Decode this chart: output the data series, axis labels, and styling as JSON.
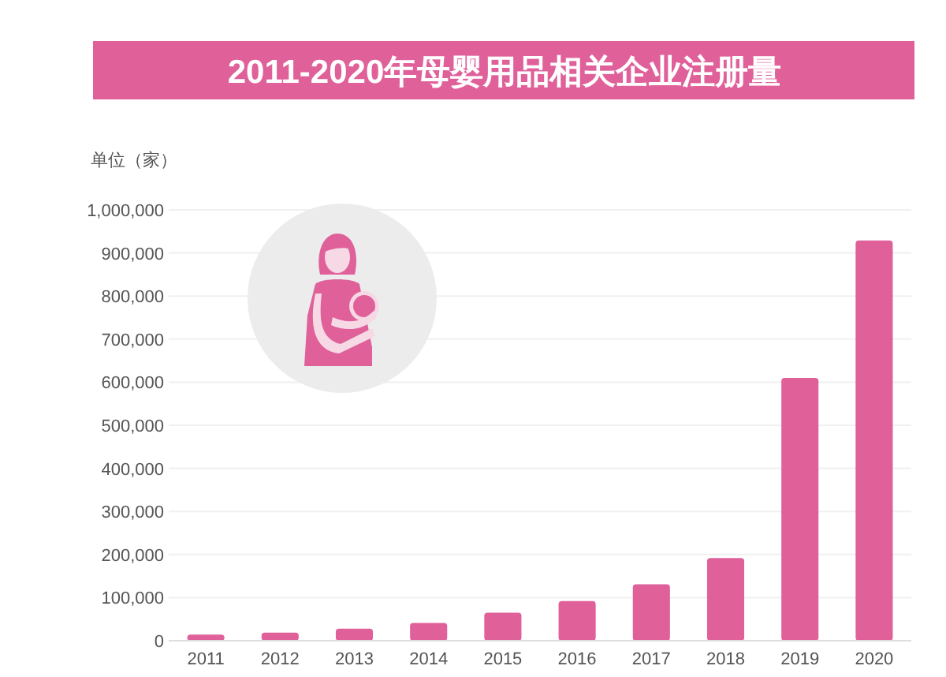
{
  "chart_data": {
    "type": "bar",
    "title": "2011-2020年母婴用品相关企业注册量",
    "ylabel": "单位（家）",
    "categories": [
      "2011",
      "2012",
      "2013",
      "2014",
      "2015",
      "2016",
      "2017",
      "2018",
      "2019",
      "2020"
    ],
    "values": [
      14000,
      19000,
      28000,
      41000,
      65000,
      92000,
      131000,
      192000,
      610000,
      929000
    ],
    "color": "#e0609a",
    "ylim": [
      0,
      1000000
    ],
    "yticks": [
      0,
      {
        "value": 100000,
        "label": "100,000"
      },
      {
        "value": 200000,
        "label": "200,000"
      },
      {
        "value": 300000,
        "label": "300,000"
      },
      {
        "value": 400000,
        "label": "400,000"
      },
      {
        "value": 500000,
        "label": "500,000"
      },
      {
        "value": 600000,
        "label": "600,000"
      },
      {
        "value": 700000,
        "label": "700,000"
      },
      {
        "value": 800000,
        "label": "800,000"
      },
      {
        "value": 900000,
        "label": "900,000"
      },
      {
        "value": 1000000,
        "label": "1,000,000"
      }
    ],
    "grid": "y"
  }
}
